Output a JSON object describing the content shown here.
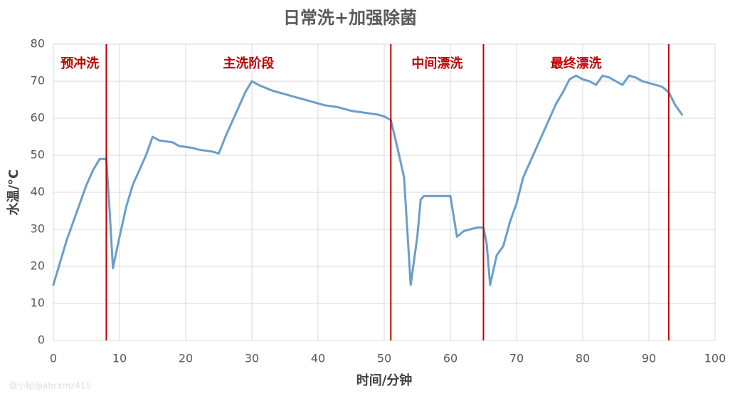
{
  "chart_data": {
    "type": "line",
    "title": "日常洗+加强除菌",
    "xlabel": "时间/分钟",
    "ylabel": "水温/°C",
    "x": [
      0,
      1,
      2,
      3,
      4,
      5,
      6,
      7,
      8,
      8.5,
      9,
      10,
      11,
      12,
      13,
      14,
      15,
      16,
      18,
      19,
      21,
      22,
      24,
      25,
      26,
      27,
      28,
      29,
      30,
      31,
      33,
      35,
      37,
      39,
      41,
      43,
      45,
      47,
      49,
      50,
      51,
      52,
      53,
      54,
      55,
      55.5,
      56,
      58,
      59,
      60,
      61,
      62,
      63,
      64,
      65,
      65.5,
      66,
      67,
      68,
      69,
      70,
      71,
      72,
      73,
      74,
      75,
      76,
      77,
      78,
      79,
      80,
      81,
      82,
      83,
      84,
      85,
      86,
      87,
      88,
      89,
      90,
      91,
      92,
      93,
      94,
      95
    ],
    "values": [
      15,
      21,
      27,
      32,
      37,
      42,
      46,
      49,
      49,
      35,
      19.5,
      28,
      36,
      42,
      46,
      50,
      55,
      54,
      53.5,
      52.5,
      52,
      51.5,
      51,
      50.5,
      55,
      59,
      63,
      67,
      70,
      69,
      67.5,
      66.5,
      65.5,
      64.5,
      63.5,
      63,
      62,
      61.5,
      61,
      60.5,
      59.5,
      52,
      44,
      15,
      28,
      38,
      39,
      39,
      39,
      39,
      28,
      29.5,
      30,
      30.5,
      30.5,
      26,
      15,
      23,
      25.5,
      32,
      37,
      44,
      48,
      52,
      56,
      60,
      64,
      67,
      70.5,
      71.5,
      70.5,
      70,
      69,
      71.5,
      71,
      70,
      69,
      71.5,
      71,
      70,
      69.5,
      69,
      68.5,
      67,
      63.5,
      61
    ],
    "color": "#6a9ec9",
    "xlim": [
      0,
      100
    ],
    "xticks": [
      0,
      10,
      20,
      30,
      40,
      50,
      60,
      70,
      80,
      90,
      100
    ],
    "ylim": [
      0,
      80
    ],
    "yticks": [
      0,
      10,
      20,
      30,
      40,
      50,
      60,
      70,
      80
    ],
    "grid": true,
    "vlines": [
      8,
      51,
      65,
      93
    ],
    "vline_color": "#c00000",
    "annotations": [
      "预冲洗",
      "主洗阶段",
      "中间漂洗",
      "最终漂洗"
    ],
    "watermark": "值小秘@abramz415"
  }
}
